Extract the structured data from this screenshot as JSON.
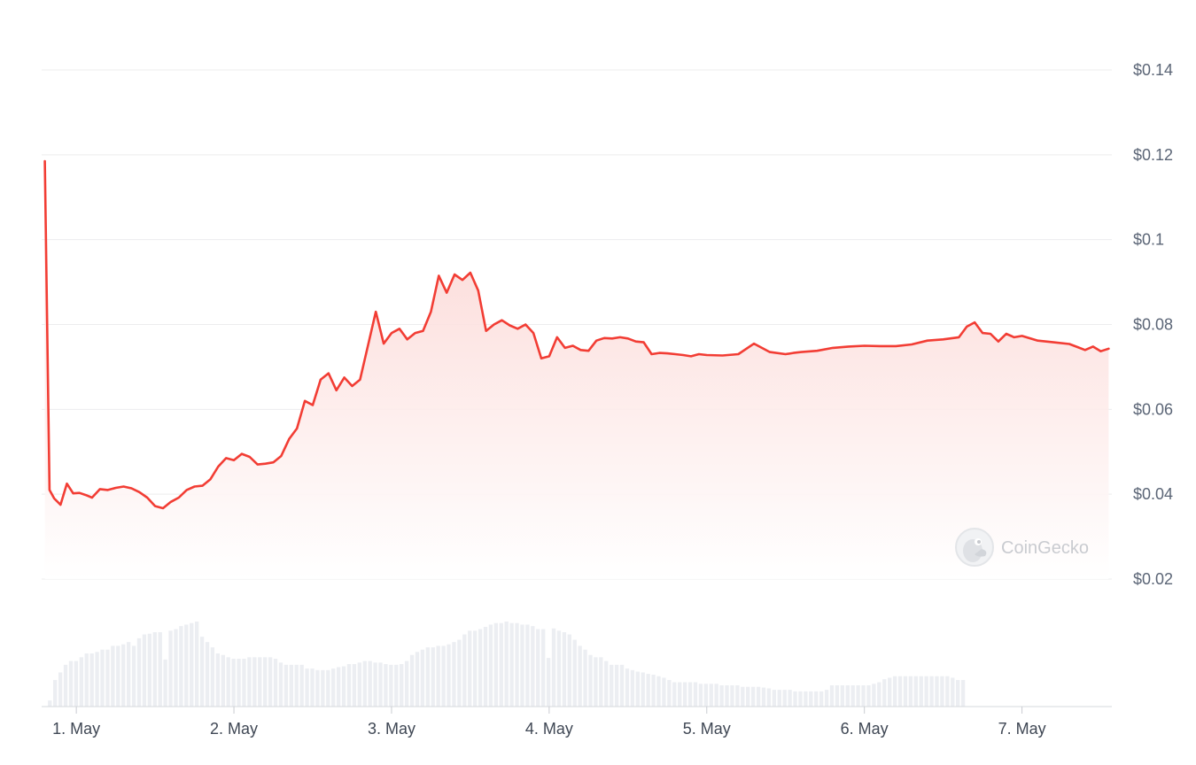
{
  "chart_data": {
    "type": "line",
    "y_axis_position": "right",
    "y_ticks": [
      "$0.14",
      "$0.12",
      "$0.1",
      "$0.08",
      "$0.06",
      "$0.04",
      "$0.02"
    ],
    "y_tick_values": [
      0.14,
      0.12,
      0.1,
      0.08,
      0.06,
      0.04,
      0.02
    ],
    "ylim": [
      0.02,
      0.14
    ],
    "x_ticks": [
      "1. May",
      "2. May",
      "3. May",
      "4. May",
      "5. May",
      "6. May",
      "7. May"
    ],
    "x_tick_values": [
      1,
      2,
      3,
      4,
      5,
      6,
      7
    ],
    "xlim": [
      0.78,
      7.57
    ],
    "grid": true,
    "colors": {
      "line": "#f23d34",
      "area": "#fde3e1",
      "volume": "#eceef2",
      "grid": "#ececee"
    },
    "watermark": {
      "text": "CoinGecko",
      "icon": "coingecko-gecko-icon"
    },
    "price": {
      "x": [
        0.8,
        0.83,
        0.86,
        0.9,
        0.94,
        0.98,
        1.02,
        1.06,
        1.1,
        1.15,
        1.2,
        1.25,
        1.3,
        1.35,
        1.4,
        1.45,
        1.5,
        1.55,
        1.6,
        1.65,
        1.7,
        1.75,
        1.8,
        1.85,
        1.9,
        1.95,
        2.0,
        2.05,
        2.1,
        2.15,
        2.2,
        2.25,
        2.3,
        2.35,
        2.4,
        2.45,
        2.5,
        2.55,
        2.6,
        2.65,
        2.7,
        2.75,
        2.8,
        2.85,
        2.9,
        2.95,
        3.0,
        3.05,
        3.1,
        3.15,
        3.2,
        3.25,
        3.3,
        3.35,
        3.4,
        3.45,
        3.5,
        3.55,
        3.6,
        3.65,
        3.7,
        3.75,
        3.8,
        3.85,
        3.9,
        3.95,
        4.0,
        4.05,
        4.1,
        4.15,
        4.2,
        4.25,
        4.3,
        4.35,
        4.4,
        4.45,
        4.5,
        4.55,
        4.6,
        4.65,
        4.7,
        4.75,
        4.8,
        4.85,
        4.9,
        4.95,
        5.0,
        5.1,
        5.2,
        5.3,
        5.4,
        5.5,
        5.55,
        5.6,
        5.7,
        5.8,
        5.9,
        6.0,
        6.1,
        6.2,
        6.3,
        6.4,
        6.5,
        6.6,
        6.65,
        6.7,
        6.75,
        6.8,
        6.85,
        6.9,
        6.95,
        7.0,
        7.1,
        7.2,
        7.3,
        7.35,
        7.4,
        7.45,
        7.5,
        7.55
      ],
      "y": [
        0.1185,
        0.041,
        0.039,
        0.0375,
        0.0425,
        0.0402,
        0.0403,
        0.0398,
        0.0392,
        0.0412,
        0.041,
        0.0415,
        0.0418,
        0.0414,
        0.0405,
        0.0392,
        0.0372,
        0.0367,
        0.0382,
        0.0392,
        0.041,
        0.0418,
        0.042,
        0.0435,
        0.0465,
        0.0485,
        0.048,
        0.0495,
        0.0488,
        0.047,
        0.0472,
        0.0475,
        0.049,
        0.053,
        0.0555,
        0.062,
        0.061,
        0.067,
        0.0685,
        0.0645,
        0.0675,
        0.0655,
        0.067,
        0.075,
        0.083,
        0.0755,
        0.078,
        0.079,
        0.0765,
        0.078,
        0.0785,
        0.083,
        0.0915,
        0.0875,
        0.0918,
        0.0905,
        0.0922,
        0.088,
        0.0785,
        0.08,
        0.081,
        0.0798,
        0.079,
        0.08,
        0.078,
        0.072,
        0.0725,
        0.077,
        0.0745,
        0.075,
        0.074,
        0.0738,
        0.0762,
        0.0768,
        0.0767,
        0.077,
        0.0767,
        0.076,
        0.0758,
        0.073,
        0.0733,
        0.0732,
        0.073,
        0.0728,
        0.0725,
        0.073,
        0.0728,
        0.0727,
        0.073,
        0.0755,
        0.0735,
        0.073,
        0.0733,
        0.0735,
        0.0738,
        0.0745,
        0.0748,
        0.075,
        0.0749,
        0.0749,
        0.0753,
        0.0762,
        0.0765,
        0.077,
        0.0795,
        0.0805,
        0.078,
        0.0778,
        0.076,
        0.0778,
        0.077,
        0.0773,
        0.0762,
        0.0758,
        0.0754,
        0.0747,
        0.074,
        0.0748,
        0.0737,
        0.0743
      ]
    },
    "volume": {
      "x_start": 0.82,
      "x_step": 0.0333,
      "values": [
        8,
        35,
        45,
        55,
        60,
        60,
        65,
        70,
        70,
        72,
        75,
        75,
        80,
        80,
        82,
        85,
        80,
        90,
        95,
        96,
        98,
        98,
        62,
        100,
        102,
        106,
        108,
        110,
        112,
        92,
        85,
        78,
        70,
        68,
        65,
        63,
        63,
        63,
        65,
        65,
        65,
        65,
        65,
        63,
        58,
        55,
        55,
        55,
        55,
        50,
        50,
        48,
        48,
        48,
        50,
        52,
        53,
        56,
        56,
        58,
        60,
        60,
        58,
        58,
        56,
        55,
        55,
        56,
        60,
        68,
        72,
        75,
        78,
        78,
        80,
        80,
        82,
        85,
        88,
        95,
        100,
        100,
        102,
        105,
        108,
        110,
        110,
        112,
        110,
        110,
        108,
        108,
        106,
        102,
        102,
        64,
        103,
        100,
        98,
        95,
        88,
        80,
        75,
        68,
        65,
        65,
        60,
        55,
        55,
        55,
        50,
        48,
        46,
        45,
        43,
        42,
        40,
        38,
        35,
        32,
        32,
        32,
        32,
        32,
        30,
        30,
        30,
        30,
        28,
        28,
        28,
        28,
        26,
        26,
        26,
        26,
        25,
        24,
        22,
        22,
        22,
        22,
        20,
        20,
        20,
        20,
        20,
        20,
        22,
        28,
        28,
        28,
        28,
        28,
        28,
        28,
        28,
        30,
        32,
        36,
        38,
        40,
        40,
        40,
        40,
        40,
        40,
        40,
        40,
        40,
        40,
        40,
        38,
        35,
        35
      ]
    }
  }
}
